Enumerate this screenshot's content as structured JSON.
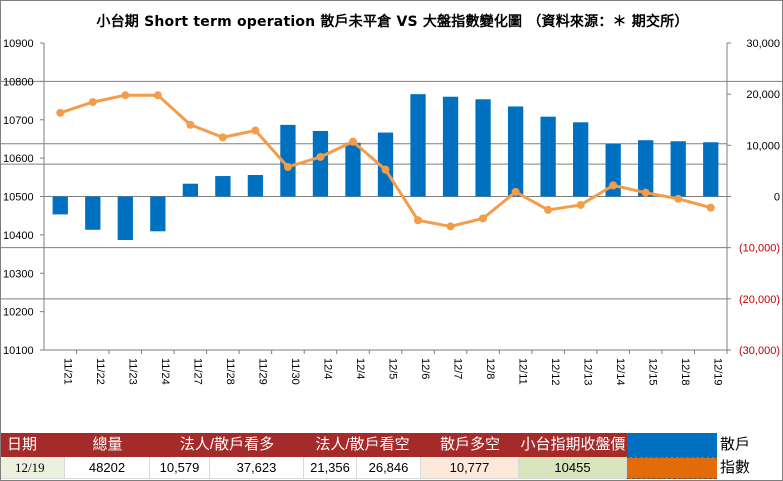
{
  "chart_data": {
    "type": "bar+line",
    "title": "小台期 Short term operation  散戶未平倉 VS 大盤指數變化圖  （資料來源：＊ 期交所）",
    "categories": [
      "11/21",
      "11/22",
      "11/23",
      "11/24",
      "11/27",
      "11/28",
      "11/29",
      "11/30",
      "12/4",
      "12/4",
      "12/5",
      "12/6",
      "12/7",
      "12/8",
      "12/11",
      "12/12",
      "12/13",
      "12/14",
      "12/15",
      "12/18",
      "12/19"
    ],
    "series": [
      {
        "name": "散戶",
        "type": "bar",
        "axis": "right",
        "color": "#0070c0",
        "values": [
          -3500,
          -6500,
          -8500,
          -6800,
          2500,
          4000,
          4200,
          14000,
          12800,
          10500,
          12500,
          20000,
          19500,
          19000,
          17600,
          15600,
          14500,
          10300,
          11000,
          10800,
          10600
        ]
      },
      {
        "name": "指數",
        "type": "line",
        "axis": "left",
        "color": "#f39c4a",
        "values": [
          10718,
          10746,
          10764,
          10764,
          10687,
          10654,
          10672,
          10577,
          10603,
          10643,
          10570,
          10438,
          10422,
          10443,
          10512,
          10465,
          10478,
          10529,
          10510,
          10494,
          10471
        ]
      }
    ],
    "y_left": {
      "min": 10100,
      "max": 10900,
      "ticks": [
        "10100",
        "10200",
        "10300",
        "10400",
        "10500",
        "10600",
        "10700",
        "10800",
        "10900"
      ]
    },
    "y_right": {
      "min": -30000,
      "max": 30000,
      "ticks": [
        "(30,000)",
        "(20,000)",
        "(10,000)",
        "0",
        "10,000",
        "20,000",
        "30,000"
      ]
    },
    "gridlines": "horizontal-partial"
  },
  "table": {
    "headers": [
      "日期",
      "總量",
      "法人/散戶看多",
      "法人/散戶看空",
      "散戶多空",
      "小台指期收盤價"
    ],
    "row": [
      "12/19",
      "48202",
      "10,579",
      "37,623",
      "21,356",
      "26,846",
      "10,777",
      "10455"
    ],
    "legend": [
      {
        "label": "散戶",
        "color": "#0070c0"
      },
      {
        "label": "指數",
        "color": "#e36c0a"
      }
    ]
  }
}
